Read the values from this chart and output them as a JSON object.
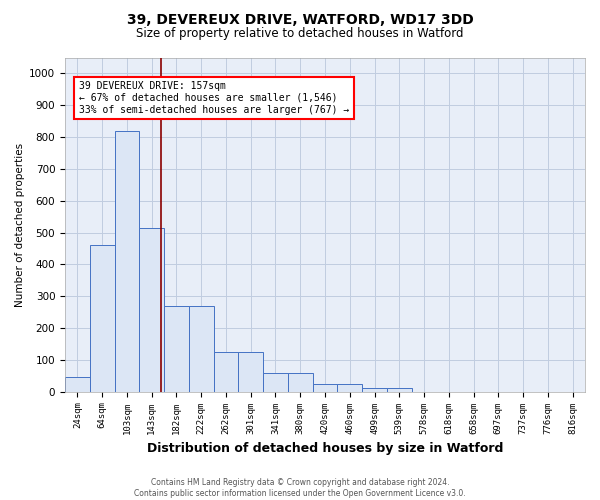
{
  "title_line1": "39, DEVEREUX DRIVE, WATFORD, WD17 3DD",
  "title_line2": "Size of property relative to detached houses in Watford",
  "xlabel": "Distribution of detached houses by size in Watford",
  "ylabel": "Number of detached properties",
  "footnote": "Contains HM Land Registry data © Crown copyright and database right 2024.\nContains public sector information licensed under the Open Government Licence v3.0.",
  "categories": [
    "24sqm",
    "64sqm",
    "103sqm",
    "143sqm",
    "182sqm",
    "222sqm",
    "262sqm",
    "301sqm",
    "341sqm",
    "380sqm",
    "420sqm",
    "460sqm",
    "499sqm",
    "539sqm",
    "578sqm",
    "618sqm",
    "658sqm",
    "697sqm",
    "737sqm",
    "776sqm",
    "816sqm"
  ],
  "values": [
    46,
    460,
    820,
    515,
    270,
    270,
    125,
    125,
    60,
    60,
    25,
    25,
    12,
    12,
    0,
    0,
    0,
    0,
    0,
    0,
    0
  ],
  "bar_color": "#dce6f5",
  "bar_edge_color": "#4472c4",
  "annotation_line1": "39 DEVEREUX DRIVE: 157sqm",
  "annotation_line2": "← 67% of detached houses are smaller (1,546)",
  "annotation_line3": "33% of semi-detached houses are larger (767) →",
  "red_line_x": 3.36,
  "ylim": [
    0,
    1050
  ],
  "yticks": [
    0,
    100,
    200,
    300,
    400,
    500,
    600,
    700,
    800,
    900,
    1000
  ],
  "plot_bg_color": "#e8eef8",
  "background_color": "#ffffff",
  "grid_color": "#c0cce0"
}
